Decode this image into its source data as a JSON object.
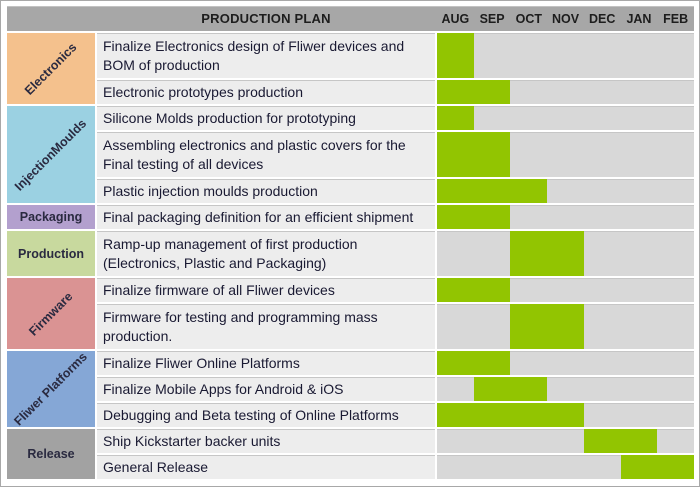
{
  "header": {
    "title": "PRODUCTION PLAN",
    "months": [
      "AUG",
      "SEP",
      "OCT",
      "NOV",
      "DEC",
      "JAN",
      "FEB"
    ]
  },
  "colors": {
    "header_bg": "#a7a7a7",
    "header_text": "#1d1d1d",
    "chart_bg": "#d8d8d8",
    "task_bg": "#ededed",
    "bar": "#92c501",
    "text": "#191932"
  },
  "groups": [
    {
      "name": "Electronics",
      "color": "#f4c18d",
      "tasks": [
        {
          "label": "Finalize Electronics design of Fliwer devices and BOM of production",
          "start": 0,
          "span": 1,
          "start_month": "AUG",
          "end_month": "AUG"
        },
        {
          "label": "Electronic prototypes production",
          "start": 0,
          "span": 2,
          "start_month": "AUG",
          "end_month": "SEP"
        }
      ]
    },
    {
      "name": "InjectionMoulds",
      "color": "#9bd1e2",
      "tasks": [
        {
          "label": "Silicone Molds production for prototyping",
          "start": 0,
          "span": 1,
          "start_month": "AUG",
          "end_month": "AUG"
        },
        {
          "label": "Assembling electronics and plastic covers for the Final testing of all devices",
          "start": 0,
          "span": 2,
          "start_month": "AUG",
          "end_month": "SEP"
        },
        {
          "label": "Plastic injection moulds production",
          "start": 0,
          "span": 3,
          "start_month": "AUG",
          "end_month": "OCT"
        }
      ]
    },
    {
      "name": "Packaging",
      "color": "#b3a0ce",
      "tasks": [
        {
          "label": "Final packaging definition for an efficient shipment",
          "start": 0,
          "span": 2,
          "start_month": "AUG",
          "end_month": "SEP"
        }
      ]
    },
    {
      "name": "Production",
      "color": "#c8d99e",
      "tasks": [
        {
          "label": "Ramp-up management of first production (Electronics, Plastic and Packaging)",
          "start": 2,
          "span": 2,
          "start_month": "OCT",
          "end_month": "NOV"
        }
      ]
    },
    {
      "name": "Firmware",
      "color": "#da9393",
      "tasks": [
        {
          "label": "Finalize firmware of all Fliwer devices",
          "start": 0,
          "span": 2,
          "start_month": "AUG",
          "end_month": "SEP"
        },
        {
          "label": "Firmware for testing and programming mass production.",
          "start": 2,
          "span": 2,
          "start_month": "OCT",
          "end_month": "NOV"
        }
      ]
    },
    {
      "name": "Fliwer Platforms",
      "color": "#85a7d6",
      "tasks": [
        {
          "label": "Finalize Fliwer Online Platforms",
          "start": 0,
          "span": 2,
          "start_month": "AUG",
          "end_month": "SEP"
        },
        {
          "label": "Finalize Mobile Apps for Android & iOS",
          "start": 1,
          "span": 2,
          "start_month": "SEP",
          "end_month": "OCT"
        },
        {
          "label": "Debugging and Beta testing of Online Platforms",
          "start": 0,
          "span": 4,
          "start_month": "AUG",
          "end_month": "NOV"
        }
      ]
    },
    {
      "name": "Release",
      "color": "#a2a2a2",
      "tasks": [
        {
          "label": "Ship Kickstarter backer units",
          "start": 4,
          "span": 2,
          "start_month": "DEC",
          "end_month": "JAN"
        },
        {
          "label": "General Release",
          "start": 5,
          "span": 2,
          "start_month": "JAN",
          "end_month": "FEB"
        }
      ]
    }
  ],
  "chart_data": {
    "type": "table",
    "subtype": "gantt",
    "title": "PRODUCTION PLAN",
    "x_axis_months": [
      "AUG",
      "SEP",
      "OCT",
      "NOV",
      "DEC",
      "JAN",
      "FEB"
    ],
    "legend_position": "none",
    "grid": false,
    "rows": [
      {
        "category": "Electronics",
        "task": "Finalize Electronics design of Fliwer devices and BOM of production",
        "start": "AUG",
        "end": "AUG"
      },
      {
        "category": "Electronics",
        "task": "Electronic prototypes production",
        "start": "AUG",
        "end": "SEP"
      },
      {
        "category": "InjectionMoulds",
        "task": "Silicone Molds production for prototyping",
        "start": "AUG",
        "end": "AUG"
      },
      {
        "category": "InjectionMoulds",
        "task": "Assembling electronics and plastic covers for the Final testing of all devices",
        "start": "AUG",
        "end": "SEP"
      },
      {
        "category": "InjectionMoulds",
        "task": "Plastic injection moulds production",
        "start": "AUG",
        "end": "OCT"
      },
      {
        "category": "Packaging",
        "task": "Final packaging definition for an efficient shipment",
        "start": "AUG",
        "end": "SEP"
      },
      {
        "category": "Production",
        "task": "Ramp-up management of first production (Electronics, Plastic and Packaging)",
        "start": "OCT",
        "end": "NOV"
      },
      {
        "category": "Firmware",
        "task": "Finalize firmware of all Fliwer devices",
        "start": "AUG",
        "end": "SEP"
      },
      {
        "category": "Firmware",
        "task": "Firmware for testing and programming mass production.",
        "start": "OCT",
        "end": "NOV"
      },
      {
        "category": "Fliwer Platforms",
        "task": "Finalize Fliwer Online Platforms",
        "start": "AUG",
        "end": "SEP"
      },
      {
        "category": "Fliwer Platforms",
        "task": "Finalize Mobile Apps for Android & iOS",
        "start": "SEP",
        "end": "OCT"
      },
      {
        "category": "Fliwer Platforms",
        "task": "Debugging and Beta testing of Online Platforms",
        "start": "AUG",
        "end": "NOV"
      },
      {
        "category": "Release",
        "task": "Ship Kickstarter backer units",
        "start": "DEC",
        "end": "JAN"
      },
      {
        "category": "Release",
        "task": "General Release",
        "start": "JAN",
        "end": "FEB"
      }
    ]
  }
}
